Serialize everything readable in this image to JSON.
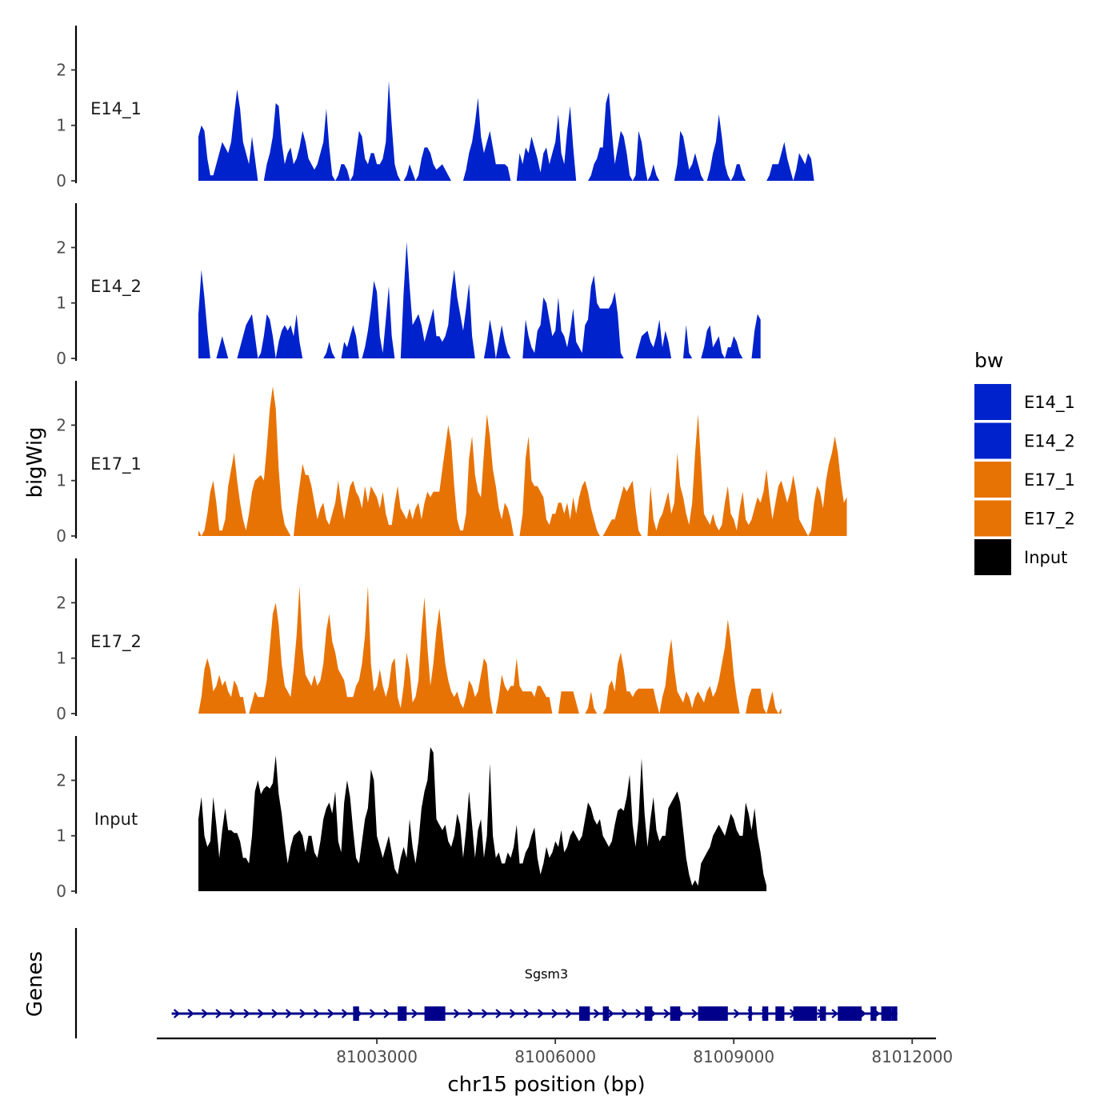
{
  "chart_data": {
    "type": "area",
    "chromosome": "chr15",
    "xlabel": "chr15 position (bp)",
    "ylabel": "bigWig",
    "gene_track_label": "Genes",
    "xlim": [
      80999300,
      81012400
    ],
    "x_ticks": [
      81003000,
      81006000,
      81009000,
      81012000
    ],
    "x_tick_labels": [
      "81003000",
      "81006000",
      "81009000",
      "81012000"
    ],
    "ylim": [
      0,
      2.8
    ],
    "y_ticks": [
      0,
      1,
      2
    ],
    "y_tick_labels": [
      "0",
      "1",
      "2"
    ],
    "legend": {
      "title": "bw",
      "entries": [
        {
          "label": "E14_1",
          "color": "#0022cc"
        },
        {
          "label": "E14_2",
          "color": "#0022cc"
        },
        {
          "label": "E17_1",
          "color": "#e87305"
        },
        {
          "label": "E17_2",
          "color": "#e87305"
        },
        {
          "label": "Input",
          "color": "#000000"
        }
      ]
    },
    "series": [
      {
        "name": "E14_1",
        "color": "#0022cc",
        "x_start": 81000000,
        "x_step": 50,
        "values": [
          0.8,
          1.0,
          0.9,
          0.4,
          0.1,
          0.1,
          0.3,
          0.5,
          0.7,
          0.6,
          0.5,
          0.7,
          1.2,
          1.65,
          1.3,
          0.7,
          0.5,
          0.3,
          0.8,
          0.4,
          0,
          0,
          0,
          0.3,
          0.5,
          0.8,
          1.4,
          1.35,
          0.7,
          0.3,
          0.5,
          0.6,
          0.3,
          0.4,
          0.6,
          0.9,
          0.7,
          0.4,
          0.3,
          0.2,
          0.3,
          0.5,
          0.7,
          1.3,
          0.6,
          0.1,
          0,
          0.1,
          0.3,
          0.3,
          0.2,
          0,
          0.1,
          0.5,
          0.9,
          0.8,
          0.4,
          0.3,
          0.5,
          0.5,
          0.3,
          0.3,
          0.4,
          0.7,
          1.8,
          1.0,
          0.3,
          0.1,
          0,
          0,
          0.1,
          0.3,
          0.15,
          0,
          0.1,
          0.4,
          0.6,
          0.6,
          0.5,
          0.3,
          0.2,
          0.25,
          0.3,
          0.2,
          0.1,
          0,
          0,
          0,
          0,
          0,
          0.2,
          0.5,
          0.7,
          1.05,
          1.5,
          0.8,
          0.5,
          0.7,
          0.9,
          0.6,
          0.3,
          0.3,
          0.3,
          0.3,
          0.25,
          0,
          0,
          0,
          0.5,
          0.3,
          0.6,
          0.5,
          0.8,
          0.6,
          0.4,
          0.15,
          0.5,
          0.6,
          0.3,
          0.5,
          0.7,
          1.2,
          0.5,
          0.3,
          0.9,
          1.35,
          0.6,
          0,
          0,
          0,
          0,
          0,
          0.1,
          0.3,
          0.4,
          0.6,
          0.6,
          1.4,
          1.6,
          0.9,
          0.3,
          0.6,
          0.9,
          0.8,
          0.5,
          0.1,
          0,
          0.1,
          0.9,
          0.7,
          0.3,
          0,
          0.1,
          0.3,
          0.1,
          0,
          0,
          0,
          0,
          0,
          0,
          0.3,
          0.9,
          0.8,
          0.5,
          0.2,
          0.3,
          0.5,
          0.3,
          0.1,
          0,
          0,
          0.2,
          0.5,
          0.7,
          1.2,
          0.8,
          0.3,
          0.1,
          0,
          0.1,
          0.3,
          0.3,
          0.1,
          0,
          0,
          0,
          0,
          0,
          0,
          0,
          0,
          0.1,
          0.3,
          0.3,
          0.3,
          0.5,
          0.7,
          0.4,
          0.2,
          0,
          0.2,
          0.5,
          0.4,
          0.3,
          0.5,
          0.4,
          0
        ]
      },
      {
        "name": "E14_2",
        "color": "#0022cc",
        "x_start": 81000000,
        "x_step": 50,
        "values": [
          0.8,
          1.6,
          1.1,
          0.5,
          0,
          0,
          0,
          0.2,
          0.4,
          0.2,
          0,
          0,
          0,
          0,
          0.2,
          0.4,
          0.6,
          0.7,
          0.8,
          0.4,
          0,
          0.1,
          0.4,
          0.8,
          0.7,
          0.4,
          0,
          0.3,
          0.5,
          0.6,
          0.5,
          0.6,
          0.4,
          0.8,
          0.3,
          0,
          0,
          0,
          0,
          0,
          0,
          0,
          0,
          0.1,
          0.3,
          0.1,
          0,
          0,
          0,
          0.3,
          0.2,
          0.4,
          0.6,
          0.4,
          0,
          0,
          0.2,
          0.5,
          0.9,
          1.4,
          1.2,
          0.4,
          0.1,
          0.7,
          1.3,
          0.4,
          0,
          0,
          0,
          1.2,
          2.1,
          1.3,
          0.6,
          0.7,
          0.8,
          0.6,
          0.3,
          0.5,
          0.7,
          0.9,
          0.4,
          0.4,
          0.3,
          0.4,
          0.6,
          1.2,
          1.6,
          1.1,
          0.8,
          0.5,
          0.9,
          1.35,
          0.4,
          0,
          0,
          0,
          0,
          0.3,
          0.7,
          0.4,
          0,
          0.3,
          0.6,
          0.3,
          0.1,
          0,
          0,
          0,
          0,
          0,
          0.7,
          0.4,
          0.2,
          0.1,
          0.5,
          0.6,
          1.1,
          1.0,
          0.7,
          0.4,
          0.5,
          1.1,
          0.5,
          0.4,
          0.2,
          0.5,
          0.9,
          0.3,
          0.2,
          0.1,
          0.6,
          0.7,
          1.3,
          1.5,
          1.0,
          0.9,
          0.9,
          0.9,
          0.9,
          1.0,
          1.2,
          0.8,
          0.1,
          0,
          0,
          0,
          0,
          0,
          0.2,
          0.4,
          0.45,
          0.5,
          0.3,
          0.2,
          0.4,
          0.7,
          0.2,
          0.5,
          0.3,
          0,
          0,
          0,
          0,
          0,
          0.6,
          0.1,
          0,
          0,
          0,
          0,
          0.2,
          0.5,
          0.6,
          0.2,
          0.3,
          0.4,
          0.1,
          0,
          0.2,
          0.2,
          0.4,
          0.3,
          0.1,
          0,
          0,
          0,
          0,
          0.5,
          0.8,
          0.7
        ]
      },
      {
        "name": "E17_1",
        "color": "#e87305",
        "x_start": 81000000,
        "x_step": 50,
        "values": [
          0.1,
          0,
          0.1,
          0.4,
          0.8,
          1.0,
          0.6,
          0.1,
          0.1,
          0.3,
          0.9,
          1.2,
          1.5,
          1.0,
          0.6,
          0.3,
          0.1,
          0.4,
          0.8,
          1.0,
          1.05,
          1.1,
          1.0,
          1.6,
          2.3,
          2.7,
          2.3,
          1.2,
          0.5,
          0.2,
          0.1,
          0,
          0,
          0.5,
          0.9,
          1.3,
          1.1,
          1.1,
          0.9,
          0.6,
          0.3,
          0.5,
          0.6,
          0.3,
          0.2,
          0.4,
          0.6,
          1.0,
          0.6,
          0.3,
          0.6,
          0.9,
          1.0,
          0.8,
          0.7,
          0.5,
          0.9,
          0.6,
          0.9,
          0.8,
          0.7,
          0.5,
          0.8,
          0.4,
          0.2,
          0.2,
          0.6,
          0.9,
          0.5,
          0.4,
          0.3,
          0.5,
          0.3,
          0.5,
          0.6,
          0.3,
          0.6,
          0.8,
          0.7,
          0.8,
          0.8,
          0.8,
          1.2,
          1.6,
          2.0,
          1.7,
          0.9,
          0.3,
          0.1,
          0.1,
          0.4,
          1.4,
          1.8,
          1.1,
          0.8,
          0.7,
          1.5,
          2.2,
          1.8,
          1.2,
          0.9,
          0.5,
          0.3,
          0.6,
          0.5,
          0.3,
          0,
          0,
          0,
          0.4,
          1.4,
          1.8,
          1.0,
          0.9,
          0.9,
          0.8,
          0.7,
          0.3,
          0.2,
          0.4,
          0.4,
          0.6,
          0.6,
          0.4,
          0.6,
          0.3,
          0.7,
          0.4,
          0.7,
          0.9,
          1.0,
          0.8,
          0.5,
          0.3,
          0.1,
          0,
          0,
          0.1,
          0.2,
          0.3,
          0.3,
          0.5,
          0.7,
          0.9,
          0.8,
          0.9,
          1.0,
          0.5,
          0.1,
          0,
          0,
          0,
          0.9,
          0.3,
          0.1,
          0.3,
          0.4,
          0.6,
          0.8,
          0.4,
          0.6,
          1.5,
          0.9,
          0.7,
          0.4,
          0.2,
          0.6,
          1.5,
          2.2,
          1.3,
          0.4,
          0.3,
          0.2,
          0.4,
          0.2,
          0.1,
          0.2,
          0.6,
          0.9,
          0.4,
          0.3,
          0.1,
          0.5,
          0.8,
          0.3,
          0.2,
          0.3,
          0.5,
          0.7,
          0.6,
          0.8,
          1.2,
          0.7,
          0.3,
          0.6,
          0.9,
          1.0,
          0.8,
          0.6,
          0.8,
          1.1,
          0.8,
          0.3,
          0.2,
          0.1,
          0,
          0.1,
          0.6,
          0.9,
          0.8,
          0.5,
          1.0,
          1.3,
          1.5,
          1.8,
          1.5,
          1.0,
          0.6,
          0.7
        ]
      },
      {
        "name": "E17_2",
        "color": "#e87305",
        "x_start": 81000000,
        "x_step": 50,
        "values": [
          0,
          0.3,
          0.8,
          1.0,
          0.8,
          0.4,
          0.5,
          0.7,
          0.5,
          0.6,
          0.4,
          0.3,
          0.6,
          0.5,
          0.3,
          0.3,
          0,
          0,
          0.2,
          0.4,
          0.3,
          0.3,
          0.3,
          0.6,
          1.2,
          1.8,
          2.0,
          1.6,
          0.9,
          0.5,
          0.4,
          0.3,
          0.8,
          1.4,
          2.3,
          1.2,
          0.7,
          0.6,
          0.5,
          0.7,
          0.5,
          0.6,
          0.9,
          1.5,
          1.8,
          1.3,
          1.1,
          0.8,
          0.7,
          0.6,
          0.3,
          0.3,
          0.3,
          0.5,
          0.6,
          0.9,
          1.4,
          2.3,
          0.9,
          0.4,
          0.5,
          0.8,
          0.5,
          0.3,
          0.5,
          0.9,
          1.0,
          0.3,
          0.1,
          0.5,
          1.1,
          0.8,
          0.2,
          0.3,
          0.6,
          1.5,
          2.1,
          1.2,
          0.5,
          0.9,
          1.5,
          1.9,
          1.4,
          0.9,
          0.6,
          0.4,
          0.3,
          0.4,
          0.2,
          0.1,
          0.3,
          0.6,
          0.5,
          0.3,
          0.4,
          0.7,
          1.0,
          0.9,
          0.3,
          0,
          0,
          0.3,
          0.7,
          0.5,
          0.4,
          0.5,
          0.5,
          1.0,
          0.5,
          0.4,
          0.4,
          0.4,
          0.4,
          0.3,
          0.5,
          0.5,
          0.4,
          0.3,
          0.3,
          0,
          0,
          0,
          0.4,
          0.4,
          0.4,
          0.4,
          0.4,
          0.2,
          0,
          0,
          0,
          0.1,
          0.4,
          0.1,
          0,
          0,
          0,
          0.1,
          0.5,
          0.6,
          0.4,
          0.9,
          1.1,
          0.8,
          0.4,
          0.4,
          0.3,
          0.4,
          0.45,
          0.45,
          0.45,
          0.45,
          0.45,
          0.45,
          0.2,
          0,
          0.3,
          0.5,
          1.0,
          1.35,
          0.8,
          0.4,
          0.3,
          0.2,
          0.4,
          0.3,
          0.1,
          0.3,
          0.4,
          0.3,
          0.2,
          0.4,
          0.5,
          0.3,
          0.4,
          0.6,
          0.9,
          1.2,
          1.7,
          1.3,
          0.7,
          0.3,
          0,
          0,
          0,
          0.3,
          0.45,
          0.45,
          0.45,
          0.45,
          0.1,
          0,
          0.2,
          0.4,
          0.1,
          0,
          0.1
        ]
      },
      {
        "name": "Input",
        "color": "#000000",
        "x_start": 81000000,
        "x_step": 50,
        "values": [
          1.3,
          1.7,
          1.0,
          0.8,
          0.9,
          1.7,
          1.2,
          0.6,
          1.1,
          1.5,
          1.1,
          1.1,
          1.05,
          1.05,
          0.9,
          0.6,
          0.6,
          0.5,
          1.0,
          1.8,
          2.0,
          1.75,
          1.85,
          1.9,
          1.85,
          1.95,
          2.45,
          1.75,
          1.4,
          0.9,
          0.5,
          0.8,
          1.0,
          1.05,
          1.1,
          1.0,
          0.7,
          1.0,
          1.0,
          0.7,
          0.6,
          0.9,
          1.3,
          1.5,
          1.6,
          1.4,
          1.8,
          0.9,
          0.7,
          1.6,
          2.0,
          1.7,
          1.1,
          0.6,
          0.5,
          0.9,
          1.3,
          1.5,
          2.2,
          2.0,
          1.0,
          0.8,
          0.6,
          0.8,
          1.0,
          0.7,
          0.4,
          0.3,
          0.6,
          0.8,
          0.6,
          1.3,
          0.8,
          0.5,
          0.9,
          1.5,
          1.8,
          2.0,
          2.6,
          2.5,
          1.3,
          1.2,
          1.1,
          1.2,
          0.9,
          0.8,
          1.0,
          1.4,
          1.2,
          0.6,
          1.1,
          1.8,
          1.2,
          0.6,
          1.1,
          1.3,
          0.6,
          1.0,
          2.3,
          1.0,
          0.6,
          0.7,
          0.5,
          0.5,
          0.7,
          0.6,
          0.8,
          1.2,
          0.5,
          0.5,
          0.7,
          0.8,
          1.0,
          1.15,
          0.6,
          0.3,
          0.5,
          0.8,
          0.6,
          0.7,
          0.9,
          0.8,
          1.1,
          0.7,
          0.8,
          1.0,
          1.1,
          1.0,
          0.9,
          1.0,
          1.3,
          1.6,
          1.5,
          1.3,
          1.2,
          1.3,
          1.0,
          0.9,
          0.8,
          0.9,
          1.2,
          1.45,
          1.5,
          1.45,
          1.7,
          2.1,
          1.2,
          0.8,
          1.3,
          2.4,
          1.4,
          0.8,
          1.3,
          1.7,
          1.1,
          0.9,
          1.0,
          1.0,
          1.5,
          1.6,
          1.7,
          1.8,
          1.6,
          1.1,
          0.6,
          0.3,
          0.1,
          0.2,
          0.1,
          0.5,
          0.6,
          0.7,
          0.8,
          1.0,
          1.1,
          1.2,
          1.1,
          1.0,
          1.2,
          1.4,
          1.3,
          1.1,
          1.0,
          1.0,
          1.6,
          1.4,
          1.1,
          1.5,
          1.0,
          0.7,
          0.3,
          0.1
        ]
      }
    ],
    "gene_track": {
      "gene": "Sgsm3",
      "strand": "+",
      "color": "#00008b",
      "start": 80999550,
      "end": 81011750,
      "exons": [
        [
          81002600,
          81002700
        ],
        [
          81003350,
          81003500
        ],
        [
          81003800,
          81004150
        ],
        [
          81006400,
          81006580
        ],
        [
          81006800,
          81006900
        ],
        [
          81007500,
          81007630
        ],
        [
          81007930,
          81008100
        ],
        [
          81008400,
          81008900
        ],
        [
          81009250,
          81009300
        ],
        [
          81009480,
          81009580
        ],
        [
          81009700,
          81009850
        ],
        [
          81010000,
          81010400
        ],
        [
          81010450,
          81010550
        ],
        [
          81010750,
          81011150
        ],
        [
          81011300,
          81011400
        ],
        [
          81011480,
          81011650
        ],
        [
          81011650,
          81011750
        ]
      ]
    }
  }
}
